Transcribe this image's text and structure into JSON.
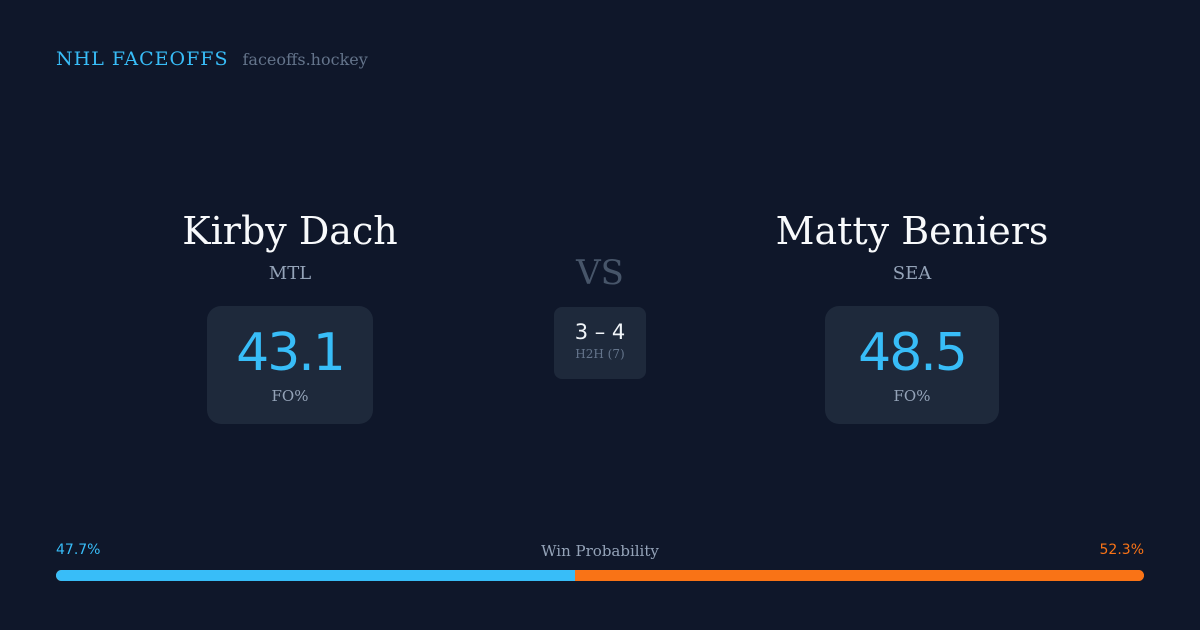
{
  "brand": {
    "name": "NHL FACEOFFS",
    "domain": "faceoffs.hockey"
  },
  "players": [
    {
      "name": "Kirby Dach",
      "team": "MTL",
      "stat_value": "43.1",
      "stat_label": "FO%"
    },
    {
      "name": "Matty Beniers",
      "team": "SEA",
      "stat_value": "48.5",
      "stat_label": "FO%"
    }
  ],
  "vs_label": "VS",
  "h2h": {
    "score": "3 – 4",
    "label": "H2H (7)"
  },
  "win_probability": {
    "title": "Win Probability",
    "left_label": "47.7%",
    "right_label": "52.3%",
    "left_value": 47.7,
    "right_value": 52.3,
    "left_color": "#38bdf8",
    "right_color": "#f97316"
  }
}
